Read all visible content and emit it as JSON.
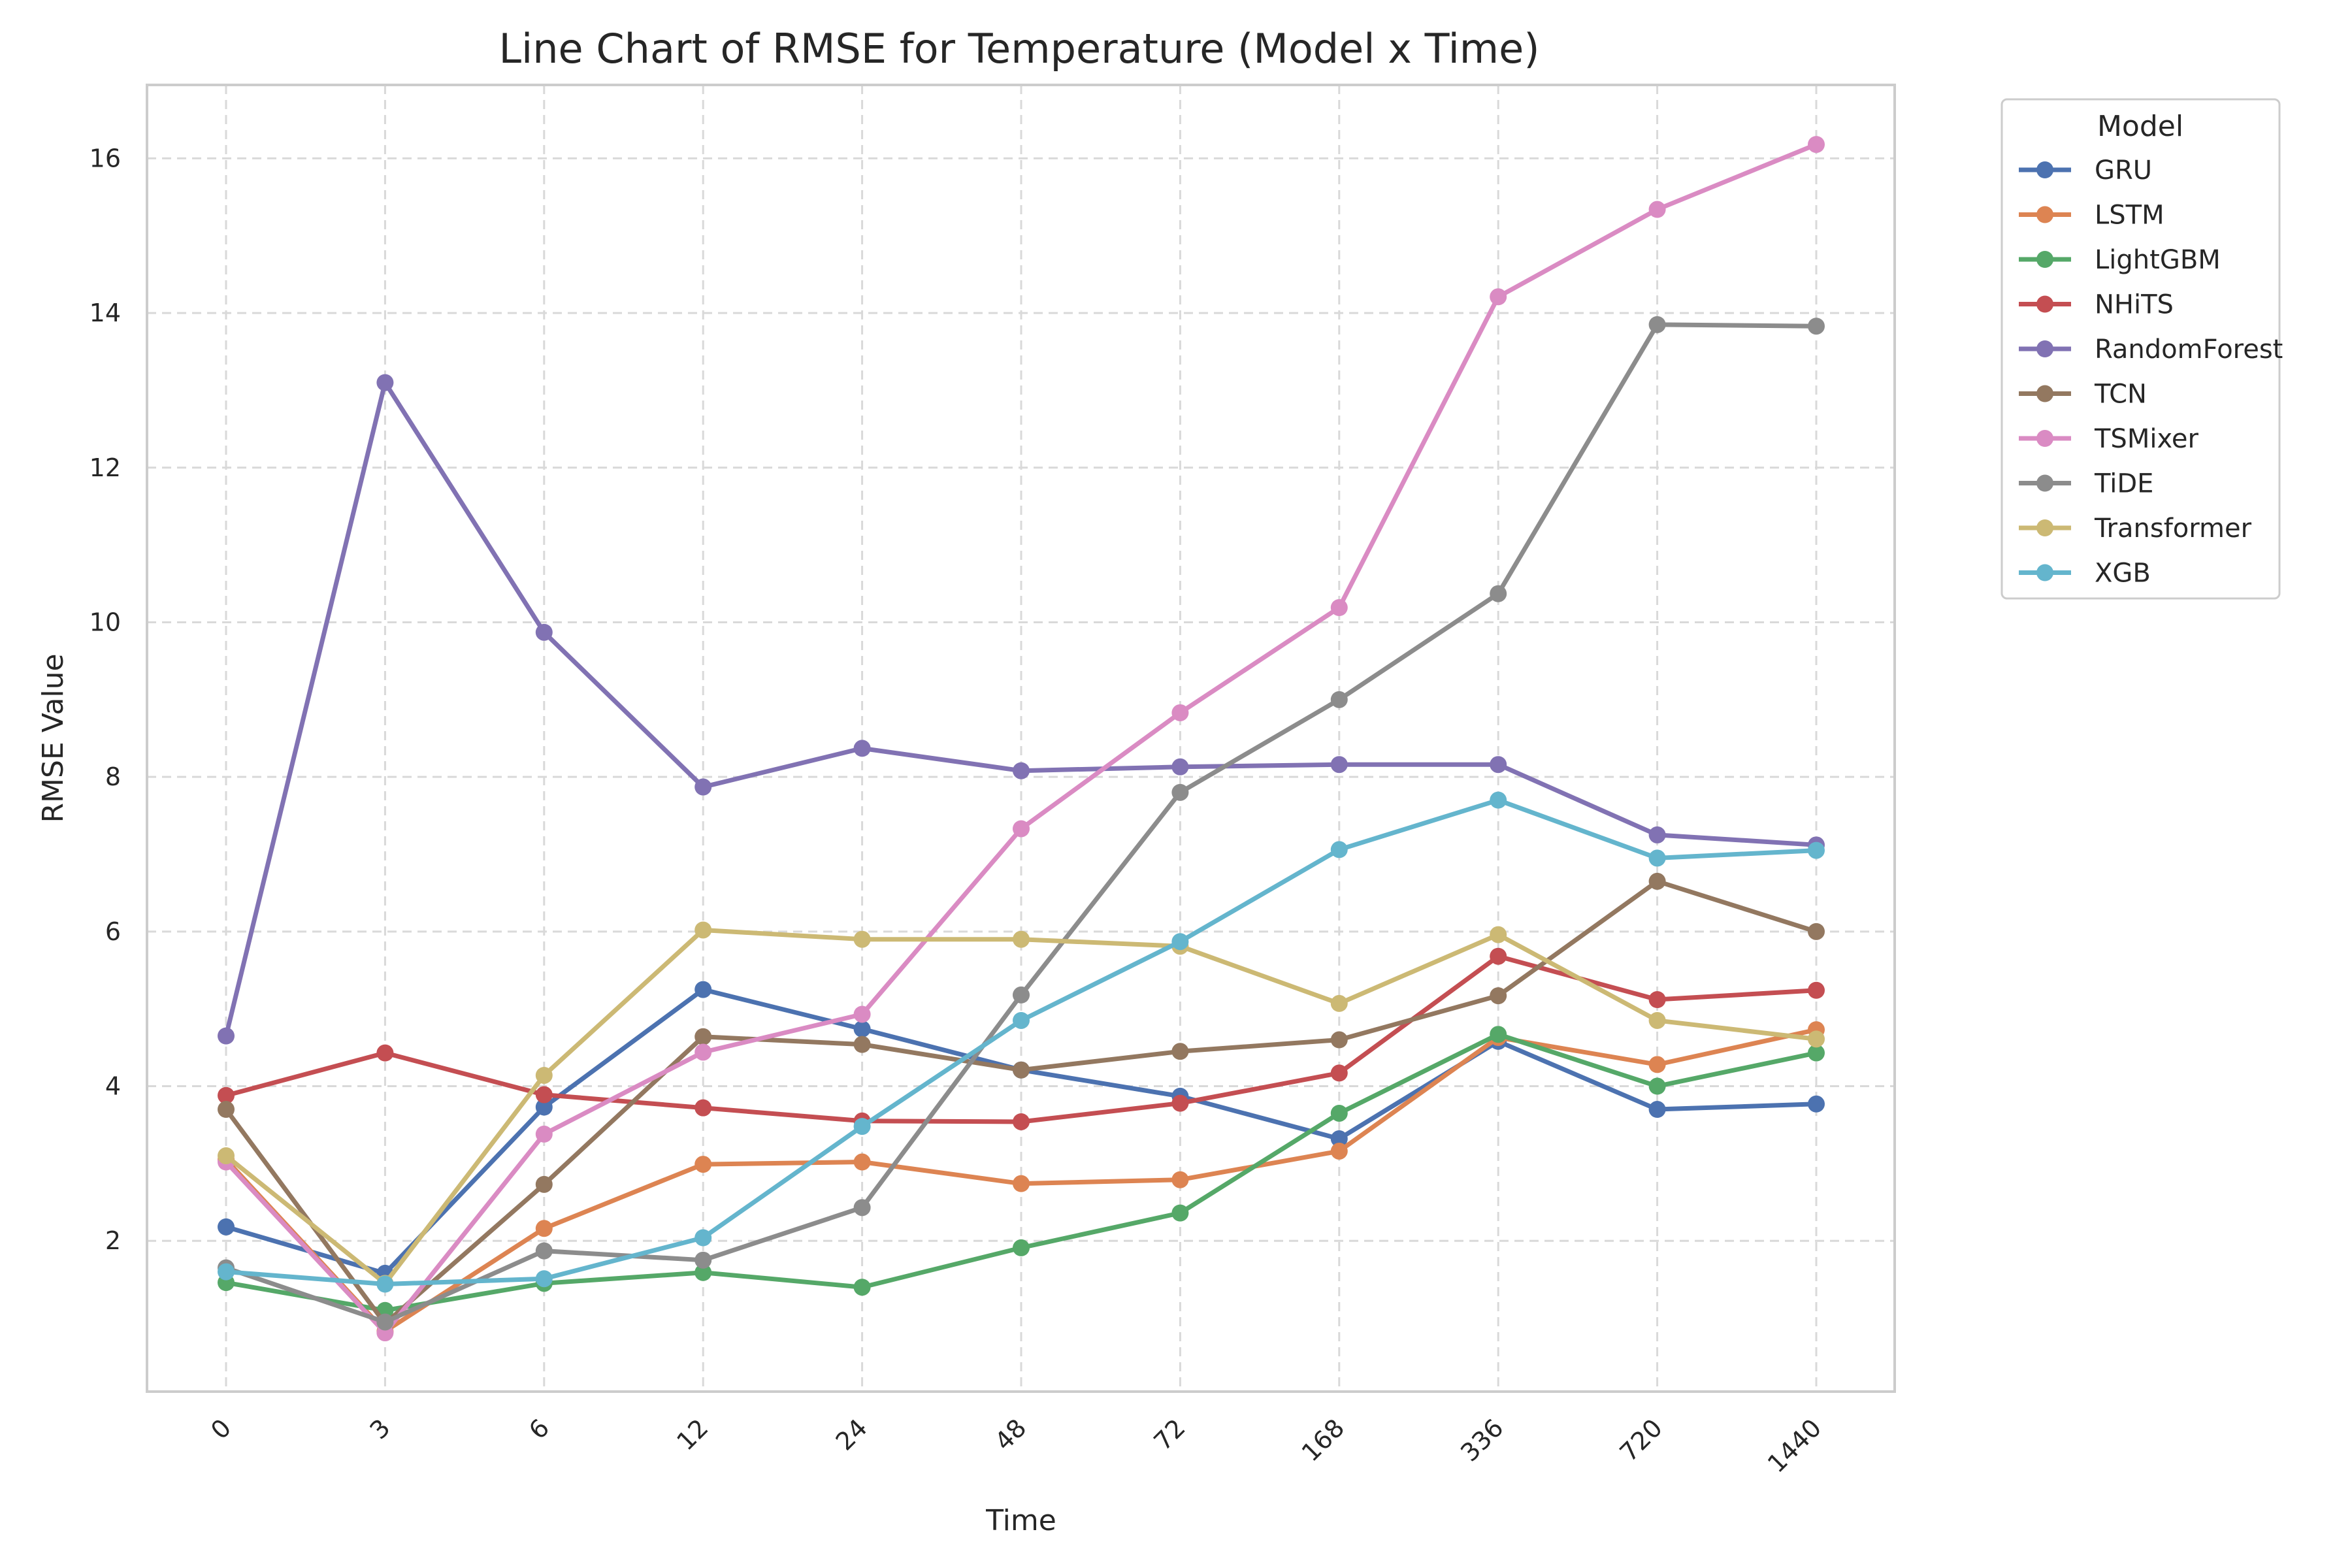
{
  "chart_data": {
    "type": "line",
    "title": "Line Chart of RMSE for Temperature (Model x Time)",
    "xlabel": "Time",
    "ylabel": "RMSE Value",
    "categories": [
      "0",
      "3",
      "6",
      "12",
      "24",
      "48",
      "72",
      "168",
      "336",
      "720",
      "1440"
    ],
    "ylim": [
      0.05,
      16.95
    ],
    "yticks": [
      2,
      4,
      6,
      8,
      10,
      12,
      14,
      16
    ],
    "grid": true,
    "legend": {
      "title": "Model",
      "placement": "outside-top-right"
    },
    "series": [
      {
        "name": "GRU",
        "color": "#4c72b0",
        "values": [
          2.18,
          1.58,
          3.73,
          5.25,
          4.74,
          4.21,
          3.87,
          3.32,
          4.58,
          3.7,
          3.77
        ]
      },
      {
        "name": "LSTM",
        "color": "#dd8452",
        "values": [
          3.05,
          0.83,
          2.16,
          2.99,
          3.02,
          2.74,
          2.79,
          3.16,
          4.63,
          4.28,
          4.73
        ]
      },
      {
        "name": "LightGBM",
        "color": "#55a868",
        "values": [
          1.46,
          1.1,
          1.45,
          1.59,
          1.4,
          1.91,
          2.36,
          3.65,
          4.67,
          4.0,
          4.43
        ]
      },
      {
        "name": "NHiTS",
        "color": "#c44e52",
        "values": [
          3.88,
          4.43,
          3.89,
          3.72,
          3.55,
          3.54,
          3.78,
          4.17,
          5.68,
          5.12,
          5.24
        ]
      },
      {
        "name": "RandomForest",
        "color": "#8172b3",
        "values": [
          4.65,
          13.1,
          9.87,
          7.87,
          8.37,
          8.08,
          8.13,
          8.16,
          8.16,
          7.25,
          7.12
        ]
      },
      {
        "name": "TCN",
        "color": "#937860",
        "values": [
          3.7,
          0.93,
          2.73,
          4.64,
          4.54,
          4.21,
          4.45,
          4.6,
          5.17,
          6.65,
          6.0
        ]
      },
      {
        "name": "TSMixer",
        "color": "#da8bc3",
        "values": [
          3.02,
          0.81,
          3.38,
          4.44,
          4.93,
          7.33,
          8.83,
          10.19,
          14.21,
          15.34,
          16.18
        ]
      },
      {
        "name": "TiDE",
        "color": "#8c8c8c",
        "values": [
          1.65,
          0.95,
          1.87,
          1.75,
          2.43,
          5.18,
          7.8,
          9.0,
          10.37,
          13.85,
          13.83
        ]
      },
      {
        "name": "Transformer",
        "color": "#ccb974",
        "values": [
          3.1,
          1.45,
          4.14,
          6.02,
          5.9,
          5.9,
          5.81,
          5.07,
          5.96,
          4.85,
          4.61
        ]
      },
      {
        "name": "XGB",
        "color": "#64b5cd",
        "values": [
          1.6,
          1.44,
          1.51,
          2.04,
          3.48,
          4.85,
          5.87,
          7.06,
          7.7,
          6.95,
          7.05
        ]
      }
    ]
  },
  "colors": {
    "axes_frame": "#cccccc",
    "grid": "#d9d9d9",
    "text": "#262626",
    "background": "#ffffff"
  }
}
